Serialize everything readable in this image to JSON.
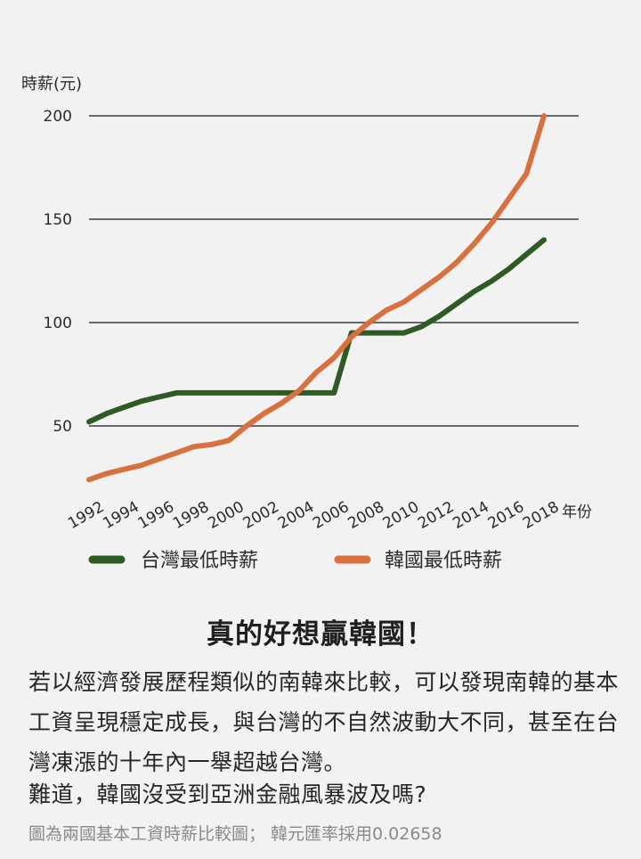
{
  "chart_data": {
    "type": "line",
    "ylabel": "時薪(元)",
    "xlabel": "年份",
    "ylim": [
      25,
      200
    ],
    "yticks": [
      50,
      100,
      150,
      200
    ],
    "x_tick_labels": [
      "1992",
      "1994",
      "1996",
      "1998",
      "2000",
      "2002",
      "2004",
      "2006",
      "2008",
      "2010",
      "2012",
      "2014",
      "2016",
      "2018"
    ],
    "grid": true,
    "legend_position": "bottom",
    "series": [
      {
        "name": "台灣最低時薪",
        "color": "#2e5a24",
        "x": [
          1992,
          1993,
          1994,
          1995,
          1996,
          1997,
          1998,
          1999,
          2000,
          2001,
          2002,
          2003,
          2004,
          2005,
          2006,
          2007,
          2008,
          2009,
          2010,
          2011,
          2012,
          2013,
          2014,
          2015,
          2016,
          2017,
          2018
        ],
        "y": [
          52,
          56,
          59,
          62,
          64,
          66,
          66,
          66,
          66,
          66,
          66,
          66,
          66,
          66,
          66,
          95,
          95,
          95,
          95,
          98,
          103,
          109,
          115,
          120,
          126,
          133,
          140
        ]
      },
      {
        "name": "韓國最低時薪",
        "color": "#d9703f",
        "x": [
          1992,
          1993,
          1994,
          1995,
          1996,
          1997,
          1998,
          1999,
          2000,
          2001,
          2002,
          2003,
          2004,
          2005,
          2006,
          2007,
          2008,
          2009,
          2010,
          2011,
          2012,
          2013,
          2014,
          2015,
          2016,
          2017,
          2018
        ],
        "y": [
          24,
          27,
          29,
          31,
          34,
          37,
          40,
          41,
          43,
          50,
          56,
          61,
          67,
          76,
          83,
          93,
          100,
          106,
          110,
          116,
          122,
          129,
          138,
          148,
          160,
          172,
          200
        ]
      }
    ]
  },
  "text": {
    "headline": "真的好想贏韓國！",
    "paragraph1": "若以經濟發展歷程類似的南韓來比較，可以發現南韓的基本工資呈現穩定成長，與台灣的不自然波動大不同，甚至在台灣凍漲的十年內一舉超越台灣。",
    "paragraph2": "難道，韓國沒受到亞洲金融風暴波及嗎?",
    "note": "圖為兩國基本工資時薪比較圖； 韓元匯率採用0.02658"
  }
}
